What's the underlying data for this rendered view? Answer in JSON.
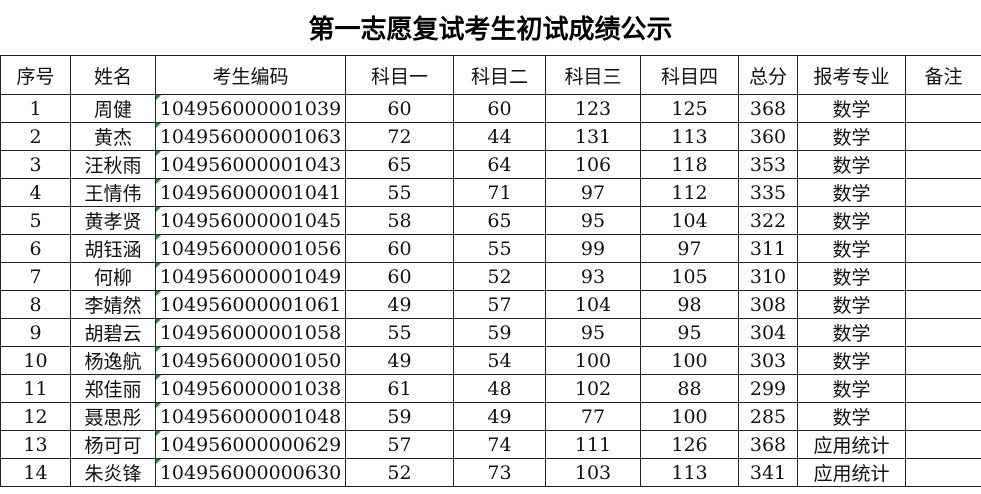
{
  "title": "第一志愿复试考生初试成绩公示",
  "headers": [
    "序号",
    "姓名",
    "考生编码",
    "科目一",
    "科目二",
    "科目三",
    "科目四",
    "总分",
    "报考专业",
    "备注"
  ],
  "rows": [
    [
      "1",
      "周健",
      "104956000001039",
      "60",
      "60",
      "123",
      "125",
      "368",
      "数学",
      ""
    ],
    [
      "2",
      "黄杰",
      "104956000001063",
      "72",
      "44",
      "131",
      "113",
      "360",
      "数学",
      ""
    ],
    [
      "3",
      "汪秋雨",
      "104956000001043",
      "65",
      "64",
      "106",
      "118",
      "353",
      "数学",
      ""
    ],
    [
      "4",
      "王情伟",
      "104956000001041",
      "55",
      "71",
      "97",
      "112",
      "335",
      "数学",
      ""
    ],
    [
      "5",
      "黄孝贤",
      "104956000001045",
      "58",
      "65",
      "95",
      "104",
      "322",
      "数学",
      ""
    ],
    [
      "6",
      "胡钰涵",
      "104956000001056",
      "60",
      "55",
      "99",
      "97",
      "311",
      "数学",
      ""
    ],
    [
      "7",
      "何柳",
      "104956000001049",
      "60",
      "52",
      "93",
      "105",
      "310",
      "数学",
      ""
    ],
    [
      "8",
      "李婧然",
      "104956000001061",
      "49",
      "57",
      "104",
      "98",
      "308",
      "数学",
      ""
    ],
    [
      "9",
      "胡碧云",
      "104956000001058",
      "55",
      "59",
      "95",
      "95",
      "304",
      "数学",
      ""
    ],
    [
      "10",
      "杨逸航",
      "104956000001050",
      "49",
      "54",
      "100",
      "100",
      "303",
      "数学",
      ""
    ],
    [
      "11",
      "郑佳丽",
      "104956000001038",
      "61",
      "48",
      "102",
      "88",
      "299",
      "数学",
      ""
    ],
    [
      "12",
      "聂思彤",
      "104956000001048",
      "59",
      "49",
      "77",
      "100",
      "285",
      "数学",
      ""
    ],
    [
      "13",
      "杨可可",
      "104956000000629",
      "57",
      "74",
      "111",
      "126",
      "368",
      "应用统计",
      ""
    ],
    [
      "14",
      "朱炎锋",
      "104956000000630",
      "52",
      "73",
      "103",
      "113",
      "341",
      "应用统计",
      ""
    ]
  ]
}
